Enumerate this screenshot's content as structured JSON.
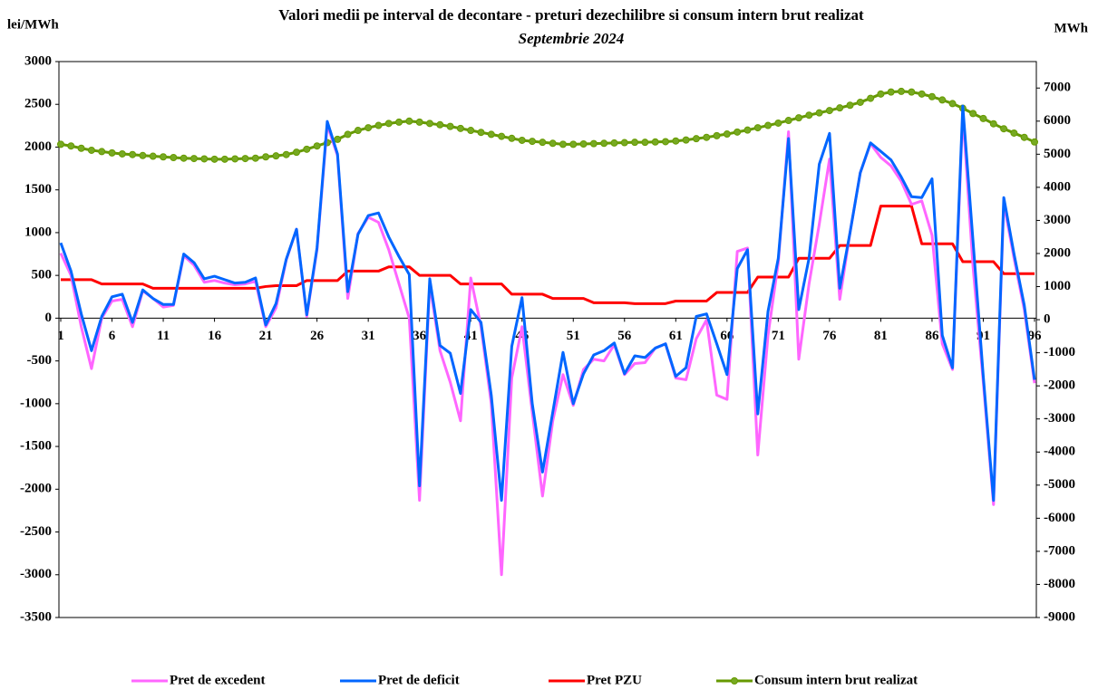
{
  "chart_data": {
    "type": "line",
    "title": "Valori medii pe interval de decontare - preturi dezechilibre si consum intern brut realizat",
    "subtitle": "Septembrie 2024",
    "y_label": "lei/MWh",
    "y2_label": "MWh",
    "categories": [
      1,
      null,
      null,
      null,
      null,
      6,
      null,
      null,
      null,
      null,
      11,
      null,
      null,
      null,
      null,
      16,
      null,
      null,
      null,
      null,
      21,
      null,
      null,
      null,
      null,
      26,
      null,
      null,
      null,
      null,
      31,
      null,
      null,
      null,
      null,
      36,
      null,
      null,
      null,
      null,
      41,
      null,
      null,
      null,
      null,
      46,
      null,
      null,
      null,
      null,
      51,
      null,
      null,
      null,
      null,
      56,
      null,
      null,
      null,
      null,
      61,
      null,
      null,
      null,
      null,
      66,
      null,
      null,
      null,
      null,
      71,
      null,
      null,
      null,
      null,
      76,
      null,
      null,
      null,
      null,
      81,
      null,
      null,
      null,
      null,
      86,
      null,
      null,
      null,
      null,
      91,
      null,
      null,
      null,
      null,
      96
    ],
    "ylim": [
      -3500,
      3000
    ],
    "yticks": [
      -3500,
      -3000,
      -2500,
      -2000,
      -1500,
      -1000,
      -500,
      0,
      500,
      1000,
      1500,
      2000,
      2500,
      3000
    ],
    "y2lim": [
      -9000,
      7800
    ],
    "y2ticks": [
      -9000,
      -8000,
      -7000,
      -6000,
      -5000,
      -4000,
      -3000,
      -2000,
      -1000,
      0,
      1000,
      2000,
      3000,
      4000,
      5000,
      6000,
      7000
    ],
    "series": [
      {
        "name": "Pret de excedent",
        "color": "#ff66ff",
        "values": [
          760,
          500,
          -100,
          -590,
          0,
          200,
          220,
          -100,
          320,
          230,
          130,
          150,
          730,
          620,
          420,
          440,
          410,
          390,
          400,
          430,
          -100,
          120,
          680,
          1040,
          20,
          800,
          2260,
          1900,
          230,
          990,
          1180,
          1120,
          800,
          400,
          0,
          -2130,
          400,
          -380,
          -750,
          -1200,
          470,
          -100,
          -1000,
          -3000,
          -700,
          -100,
          -1100,
          -2080,
          -1200,
          -660,
          -1020,
          -600,
          -480,
          -500,
          -310,
          -660,
          -530,
          -520,
          -350,
          -300,
          -700,
          -720,
          -240,
          -20,
          -900,
          -950,
          780,
          820,
          -1600,
          -200,
          650,
          2180,
          -480,
          400,
          1100,
          1860,
          220,
          1000,
          1700,
          2040,
          1880,
          1780,
          1600,
          1330,
          1370,
          970,
          -300,
          -600,
          2400,
          600,
          -750,
          -2180,
          1350,
          700,
          100,
          -760
        ]
      },
      {
        "name": "Pret de deficit",
        "color": "#0066ff",
        "values": [
          880,
          550,
          50,
          -380,
          20,
          250,
          280,
          -50,
          330,
          230,
          160,
          160,
          750,
          650,
          460,
          490,
          450,
          410,
          420,
          470,
          -80,
          170,
          690,
          1040,
          40,
          820,
          2300,
          1920,
          310,
          980,
          1200,
          1230,
          950,
          720,
          510,
          -1960,
          460,
          -320,
          -410,
          -880,
          100,
          -50,
          -900,
          -2130,
          -330,
          240,
          -1000,
          -1800,
          -1100,
          -400,
          -1000,
          -650,
          -430,
          -380,
          -290,
          -650,
          -440,
          -460,
          -350,
          -300,
          -680,
          -580,
          20,
          50,
          -300,
          -660,
          580,
          800,
          -1120,
          80,
          700,
          2100,
          100,
          700,
          1800,
          2160,
          350,
          1000,
          1700,
          2050,
          1950,
          1850,
          1650,
          1420,
          1410,
          1630,
          -200,
          -580,
          2480,
          900,
          -680,
          -2130,
          1410,
          750,
          150,
          -720
        ]
      },
      {
        "name": "Pret PZU",
        "color": "#ff0000",
        "values": [
          450,
          450,
          450,
          450,
          400,
          400,
          400,
          400,
          400,
          350,
          350,
          350,
          350,
          350,
          350,
          350,
          350,
          350,
          350,
          350,
          370,
          380,
          380,
          380,
          440,
          440,
          440,
          440,
          550,
          550,
          550,
          550,
          600,
          600,
          600,
          500,
          500,
          500,
          500,
          400,
          400,
          400,
          400,
          400,
          280,
          280,
          280,
          280,
          230,
          230,
          230,
          230,
          180,
          180,
          180,
          180,
          170,
          170,
          170,
          170,
          200,
          200,
          200,
          200,
          300,
          300,
          300,
          300,
          480,
          480,
          480,
          480,
          700,
          700,
          700,
          700,
          850,
          850,
          850,
          850,
          1310,
          1310,
          1310,
          1310,
          870,
          870,
          870,
          870,
          660,
          660,
          660,
          660,
          520,
          520,
          520,
          520
        ]
      },
      {
        "name": "Consum intern brut realizat",
        "color": "#669900",
        "axis": "y2",
        "values": [
          5300,
          5250,
          5180,
          5120,
          5080,
          5040,
          5010,
          4990,
          4960,
          4940,
          4920,
          4900,
          4880,
          4870,
          4860,
          4850,
          4850,
          4860,
          4870,
          4880,
          4920,
          4950,
          4990,
          5060,
          5150,
          5250,
          5350,
          5450,
          5600,
          5720,
          5800,
          5870,
          5930,
          5970,
          6000,
          5970,
          5930,
          5890,
          5840,
          5780,
          5720,
          5660,
          5600,
          5540,
          5480,
          5420,
          5390,
          5360,
          5330,
          5300,
          5300,
          5310,
          5320,
          5330,
          5340,
          5350,
          5360,
          5360,
          5370,
          5380,
          5400,
          5430,
          5470,
          5510,
          5560,
          5610,
          5670,
          5730,
          5800,
          5870,
          5940,
          6020,
          6100,
          6180,
          6250,
          6320,
          6400,
          6480,
          6570,
          6690,
          6820,
          6880,
          6900,
          6880,
          6820,
          6740,
          6640,
          6530,
          6390,
          6230,
          6080,
          5920,
          5770,
          5640,
          5510,
          5370
        ]
      }
    ]
  }
}
